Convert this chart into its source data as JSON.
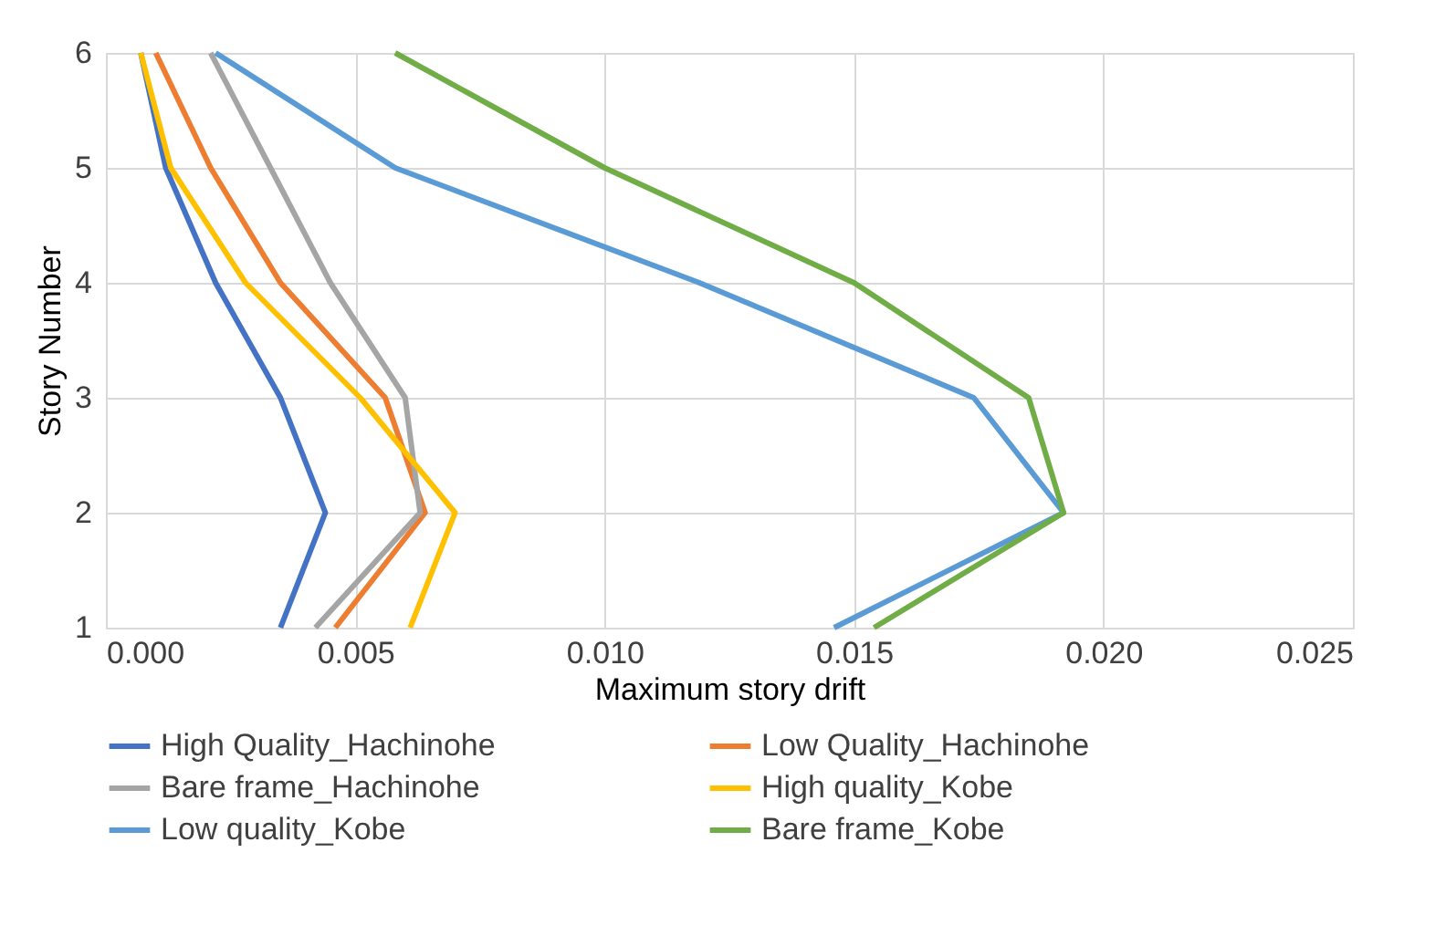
{
  "chart_data": {
    "type": "line",
    "xlabel": "Maximum story drift",
    "ylabel": "Story Number",
    "xlim": [
      0,
      0.025
    ],
    "xticks": [
      {
        "value": 0,
        "label": "0.000"
      },
      {
        "value": 0.005,
        "label": "0.005"
      },
      {
        "value": 0.01,
        "label": "0.010"
      },
      {
        "value": 0.015,
        "label": "0.015"
      },
      {
        "value": 0.02,
        "label": "0.020"
      },
      {
        "value": 0.025,
        "label": "0.025"
      }
    ],
    "ylim": [
      1,
      6
    ],
    "yticks": [
      1,
      2,
      3,
      4,
      5,
      6
    ],
    "grid": true,
    "legend": "bottom",
    "marker": "none",
    "line_style": "solid",
    "series": [
      {
        "name": "High Quality_Hachinohe",
        "color": "#4472c4",
        "x": [
          0.0035,
          0.0044,
          0.0035,
          0.0022,
          0.0012,
          0.0007
        ],
        "values": [
          1,
          2,
          3,
          4,
          5,
          6
        ]
      },
      {
        "name": "Low Quality_Hachinohe",
        "color": "#ed7d31",
        "x": [
          0.0046,
          0.0064,
          0.0056,
          0.0035,
          0.0021,
          0.001
        ],
        "values": [
          1,
          2,
          3,
          4,
          5,
          6
        ]
      },
      {
        "name": "Bare frame_Hachinohe",
        "color": "#a5a5a5",
        "x": [
          0.0042,
          0.0063,
          0.006,
          0.0045,
          0.0033,
          0.0021
        ],
        "values": [
          1,
          2,
          3,
          4,
          5,
          6
        ]
      },
      {
        "name": "High quality_Kobe",
        "color": "#ffc000",
        "x": [
          0.0061,
          0.007,
          0.0051,
          0.0028,
          0.0013,
          0.0007
        ],
        "values": [
          1,
          2,
          3,
          4,
          5,
          6
        ]
      },
      {
        "name": "Low quality_Kobe",
        "color": "#5b9bd5",
        "x": [
          0.0146,
          0.0192,
          0.0174,
          0.0119,
          0.0058,
          0.0022
        ],
        "values": [
          1,
          2,
          3,
          4,
          5,
          6
        ]
      },
      {
        "name": "Bare frame_Kobe",
        "color": "#70ad47",
        "x": [
          0.0154,
          0.0192,
          0.0185,
          0.015,
          0.01,
          0.0058
        ],
        "values": [
          1,
          2,
          3,
          4,
          5,
          6
        ]
      }
    ]
  }
}
